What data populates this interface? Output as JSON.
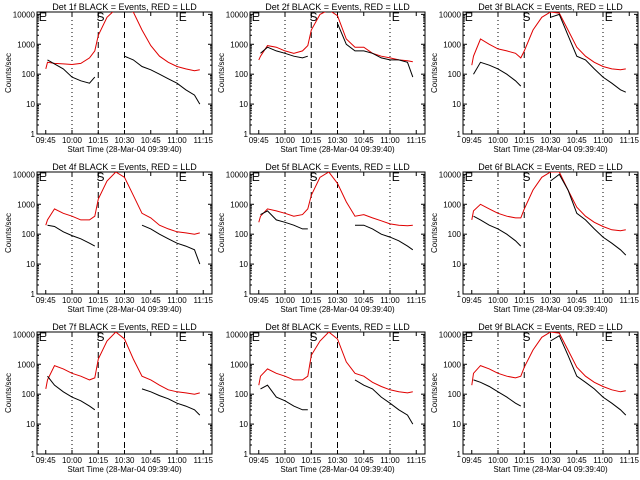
{
  "chart_data": {
    "type": "line",
    "figure": "3x3 grid of RHESSI detector lightcurves",
    "shared": {
      "xlabel": "Start Time (28-Mar-04 09:39:40)",
      "ylabel": "Counts/sec",
      "yscale": "log",
      "ylim": [
        1,
        12000
      ],
      "yticks": [
        "1",
        "10",
        "100",
        "1000",
        "10000"
      ],
      "xlim": [
        "09:40",
        "11:20"
      ],
      "xticks": [
        "09:45",
        "10:00",
        "10:15",
        "10:30",
        "10:45",
        "11:00",
        "11:15"
      ],
      "series_colors": {
        "events": "#000000",
        "lld": "#e00000"
      },
      "vlines": [
        {
          "time": "10:00",
          "style": "dotted"
        },
        {
          "time": "10:15",
          "style": "dashed"
        },
        {
          "time": "10:30",
          "style": "dashed"
        },
        {
          "time": "11:00",
          "style": "dotted"
        }
      ],
      "markers": [
        {
          "label": "E",
          "time": "09:41"
        },
        {
          "label": "S",
          "time": "10:14"
        },
        {
          "label": "E",
          "time": "11:01"
        }
      ],
      "x_samples": [
        "09:45",
        "09:46",
        "09:50",
        "09:55",
        "10:00",
        "10:05",
        "10:10",
        "10:13",
        "10:15",
        "10:20",
        "10:25",
        "10:30",
        "10:35",
        "10:40",
        "10:45",
        "10:50",
        "10:55",
        "11:00",
        "11:05",
        "11:10",
        "11:13"
      ],
      "segments": [
        [
          1,
          7
        ],
        [
          11,
          20
        ]
      ]
    },
    "panels": [
      {
        "title": "Det 1f BLACK = Events, RED = LLD",
        "events": [
          120,
          300,
          220,
          150,
          80,
          60,
          50,
          80,
          null,
          null,
          null,
          400,
          300,
          180,
          140,
          100,
          70,
          50,
          30,
          20,
          10
        ],
        "lld": [
          150,
          250,
          230,
          220,
          210,
          230,
          350,
          600,
          2000,
          8000,
          15000,
          14000,
          12000,
          3000,
          900,
          400,
          250,
          180,
          150,
          130,
          140
        ]
      },
      {
        "title": "Det 2f BLACK = Events, RED = LLD",
        "events": [
          400,
          500,
          800,
          600,
          500,
          400,
          350,
          400,
          1500,
          5000,
          10000,
          5000,
          1000,
          600,
          600,
          500,
          350,
          300,
          300,
          250,
          80
        ],
        "lld": [
          300,
          400,
          900,
          800,
          600,
          500,
          600,
          900,
          3000,
          10000,
          14000,
          9000,
          1500,
          800,
          800,
          500,
          400,
          350,
          300,
          280,
          260
        ]
      },
      {
        "title": "Det 3f BLACK = Events, RED = LLD",
        "events": [
          180,
          100,
          250,
          200,
          150,
          100,
          60,
          40,
          40,
          400,
          2000,
          8000,
          10000,
          2000,
          400,
          300,
          150,
          80,
          50,
          30,
          25
        ],
        "lld": [
          200,
          400,
          1500,
          1000,
          700,
          600,
          500,
          350,
          600,
          3000,
          8000,
          12000,
          11000,
          3000,
          800,
          400,
          250,
          180,
          150,
          140,
          150
        ]
      },
      {
        "title": "Det 4f BLACK = Events, RED = LLD",
        "events": [
          100,
          200,
          180,
          120,
          90,
          70,
          50,
          40,
          40,
          null,
          null,
          null,
          null,
          200,
          150,
          100,
          70,
          50,
          40,
          30,
          10
        ],
        "lld": [
          200,
          300,
          700,
          500,
          400,
          300,
          300,
          400,
          1500,
          6000,
          12000,
          8000,
          2000,
          500,
          350,
          200,
          150,
          120,
          110,
          100,
          110
        ]
      },
      {
        "title": "Det 5f BLACK = Events, RED = LLD",
        "events": [
          300,
          450,
          600,
          300,
          250,
          200,
          150,
          150,
          300,
          null,
          null,
          null,
          null,
          200,
          200,
          150,
          100,
          80,
          60,
          40,
          30
        ],
        "lld": [
          250,
          400,
          700,
          600,
          500,
          400,
          450,
          700,
          2000,
          8000,
          12000,
          5000,
          1200,
          400,
          450,
          350,
          280,
          220,
          200,
          190,
          200
        ]
      },
      {
        "title": "Det 6f BLACK = Events, RED = LLD",
        "events": [
          100,
          400,
          300,
          200,
          150,
          100,
          60,
          40,
          40,
          300,
          1500,
          6000,
          10000,
          3000,
          500,
          300,
          150,
          80,
          50,
          30,
          20
        ],
        "lld": [
          300,
          600,
          1000,
          700,
          500,
          400,
          350,
          350,
          700,
          3000,
          8000,
          12000,
          12000,
          3000,
          800,
          400,
          250,
          180,
          140,
          130,
          140
        ]
      },
      {
        "title": "Det 7f BLACK = Events, RED = LLD",
        "events": [
          60,
          400,
          200,
          120,
          80,
          60,
          40,
          30,
          40,
          null,
          null,
          null,
          null,
          150,
          120,
          90,
          70,
          50,
          40,
          30,
          20
        ],
        "lld": [
          150,
          300,
          900,
          700,
          500,
          400,
          300,
          350,
          1500,
          6000,
          12000,
          7000,
          1500,
          400,
          300,
          200,
          140,
          120,
          110,
          100,
          110
        ]
      },
      {
        "title": "Det 8f BLACK = Events, RED = LLD",
        "events": [
          50,
          150,
          200,
          80,
          60,
          40,
          30,
          30,
          40,
          null,
          null,
          null,
          null,
          300,
          200,
          150,
          80,
          50,
          30,
          20,
          10
        ],
        "lld": [
          200,
          400,
          700,
          500,
          400,
          300,
          300,
          400,
          2000,
          6000,
          12000,
          7000,
          1200,
          500,
          400,
          250,
          180,
          140,
          120,
          110,
          120
        ]
      },
      {
        "title": "Det 9f BLACK = Events, RED = LLD",
        "events": [
          100,
          300,
          250,
          180,
          120,
          80,
          50,
          40,
          40,
          300,
          1500,
          6000,
          9000,
          2000,
          400,
          250,
          150,
          80,
          50,
          30,
          20
        ],
        "lld": [
          200,
          500,
          900,
          700,
          500,
          400,
          350,
          400,
          800,
          3000,
          8000,
          12000,
          11000,
          3000,
          800,
          400,
          250,
          180,
          140,
          120,
          130
        ]
      }
    ]
  }
}
